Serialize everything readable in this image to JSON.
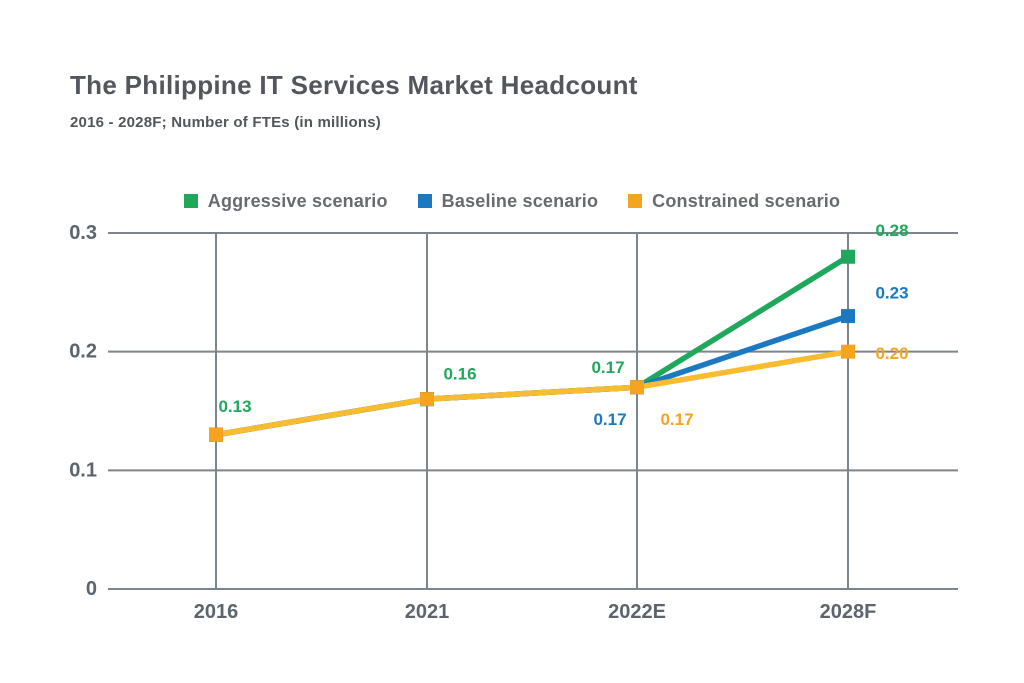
{
  "header": {
    "title": "The Philippine IT Services Market Headcount",
    "subtitle": "2016 - 2028F; Number of FTEs (in millions)"
  },
  "chart_data": {
    "type": "line",
    "title": "The Philippine IT Services Market Headcount",
    "subtitle": "2016 - 2028F; Number of FTEs (in millions)",
    "categories": [
      "2016",
      "2021",
      "2022E",
      "2028F"
    ],
    "y_ticks": [
      "0",
      "0.1",
      "0.2",
      "0.3"
    ],
    "y_tick_values": [
      0,
      0.1,
      0.2,
      0.3
    ],
    "ylim": [
      0,
      0.3
    ],
    "grid": true,
    "legend_position": "top",
    "colors": {
      "grid": "#7c858b",
      "tick_text": "#5c656c",
      "title_text": "#53565c",
      "legend_text": "#676b70"
    },
    "series": [
      {
        "name": "Aggressive scenario",
        "color": "#1fa75b",
        "values": [
          0.13,
          0.16,
          0.17,
          0.28
        ],
        "point_labels": [
          "0.13",
          "0.16",
          "0.17",
          "0.28"
        ]
      },
      {
        "name": "Baseline scenario",
        "color": "#1a79c0",
        "values": [
          0.13,
          0.16,
          0.17,
          0.23
        ],
        "point_labels": [
          null,
          null,
          "0.17",
          "0.23"
        ]
      },
      {
        "name": "Constrained scenario",
        "color": "#f9bb2f",
        "marker_color": "#f4a41f",
        "label_color": "#f4a41f",
        "values": [
          0.13,
          0.16,
          0.17,
          0.2
        ],
        "point_labels": [
          null,
          null,
          "0.17",
          "0.20"
        ]
      }
    ]
  }
}
